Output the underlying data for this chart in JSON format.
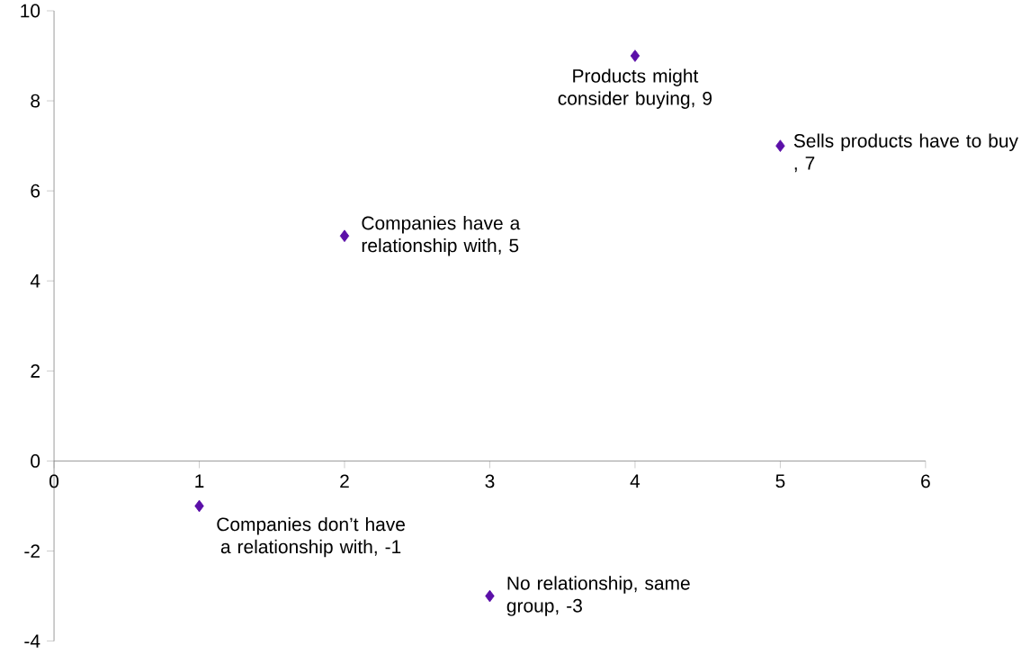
{
  "chart_data": {
    "type": "scatter",
    "x": [
      1,
      2,
      3,
      4,
      5
    ],
    "values": [
      -1,
      5,
      -3,
      9,
      7
    ],
    "color": "#5b0fa8",
    "marker": "diamond",
    "xlim": [
      0,
      6
    ],
    "ylim": [
      -4,
      10
    ],
    "xticks": [
      0,
      1,
      2,
      3,
      4,
      5,
      6
    ],
    "yticks": [
      -4,
      -2,
      0,
      2,
      4,
      6,
      8,
      10
    ],
    "grid": false,
    "annotations": [
      {
        "text": "Companies don’t have a relationship with, -1",
        "x": 1,
        "y": -1
      },
      {
        "text": "Companies have a relationship with, 5",
        "x": 2,
        "y": 5
      },
      {
        "text": "No relationship, same group, -3",
        "x": 3,
        "y": -3
      },
      {
        "text": "Products might consider buying, 9",
        "x": 4,
        "y": 9
      },
      {
        "text": "Sells products have to buy , 7",
        "x": 5,
        "y": 7
      }
    ]
  }
}
